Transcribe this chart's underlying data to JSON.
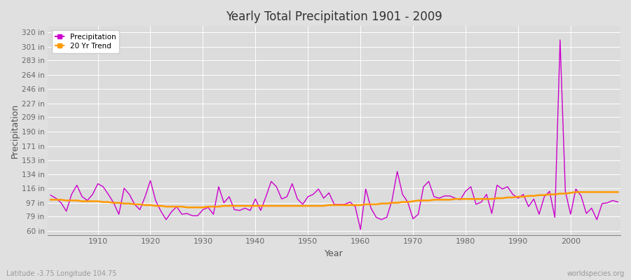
{
  "title": "Yearly Total Precipitation 1901 - 2009",
  "xlabel": "Year",
  "ylabel": "Precipitation",
  "lat_lon_label": "Latitude -3.75 Longitude 104.75",
  "watermark": "worldspecies.org",
  "years": [
    1901,
    1902,
    1903,
    1904,
    1905,
    1906,
    1907,
    1908,
    1909,
    1910,
    1911,
    1912,
    1913,
    1914,
    1915,
    1916,
    1917,
    1918,
    1919,
    1920,
    1921,
    1922,
    1923,
    1924,
    1925,
    1926,
    1927,
    1928,
    1929,
    1930,
    1931,
    1932,
    1933,
    1934,
    1935,
    1936,
    1937,
    1938,
    1939,
    1940,
    1941,
    1942,
    1943,
    1944,
    1945,
    1946,
    1947,
    1948,
    1949,
    1950,
    1951,
    1952,
    1953,
    1954,
    1955,
    1956,
    1957,
    1958,
    1959,
    1960,
    1961,
    1962,
    1963,
    1964,
    1965,
    1966,
    1967,
    1968,
    1969,
    1970,
    1971,
    1972,
    1973,
    1974,
    1975,
    1976,
    1977,
    1978,
    1979,
    1980,
    1981,
    1982,
    1983,
    1984,
    1985,
    1986,
    1987,
    1988,
    1989,
    1990,
    1991,
    1992,
    1993,
    1994,
    1995,
    1996,
    1997,
    1998,
    1999,
    2000,
    2001,
    2002,
    2003,
    2004,
    2005,
    2006,
    2007,
    2008,
    2009
  ],
  "precipitation": [
    107,
    103,
    97,
    86,
    108,
    120,
    105,
    100,
    108,
    122,
    118,
    108,
    97,
    82,
    116,
    108,
    95,
    88,
    105,
    126,
    100,
    86,
    75,
    85,
    92,
    82,
    83,
    80,
    80,
    88,
    91,
    82,
    118,
    97,
    105,
    88,
    87,
    90,
    87,
    102,
    87,
    105,
    125,
    118,
    102,
    105,
    122,
    102,
    95,
    105,
    108,
    115,
    103,
    110,
    95,
    95,
    95,
    98,
    92,
    62,
    115,
    90,
    78,
    75,
    78,
    100,
    138,
    108,
    98,
    76,
    82,
    118,
    125,
    105,
    103,
    106,
    106,
    103,
    101,
    112,
    118,
    95,
    98,
    108,
    83,
    120,
    115,
    118,
    108,
    103,
    108,
    92,
    102,
    82,
    105,
    112,
    78,
    310,
    112,
    82,
    115,
    106,
    83,
    90,
    75,
    96,
    97,
    100,
    98
  ],
  "trend": [
    101,
    101,
    101,
    100,
    100,
    100,
    99,
    99,
    99,
    99,
    98,
    98,
    97,
    97,
    96,
    96,
    95,
    95,
    94,
    94,
    93,
    93,
    92,
    92,
    92,
    92,
    91,
    91,
    91,
    91,
    92,
    92,
    92,
    93,
    93,
    93,
    93,
    93,
    93,
    93,
    93,
    93,
    93,
    93,
    93,
    93,
    93,
    93,
    93,
    93,
    93,
    93,
    93,
    94,
    94,
    94,
    94,
    94,
    94,
    94,
    95,
    95,
    95,
    96,
    96,
    97,
    97,
    98,
    98,
    99,
    100,
    100,
    100,
    101,
    101,
    101,
    101,
    102,
    102,
    102,
    102,
    102,
    102,
    102,
    102,
    103,
    103,
    104,
    104,
    105,
    105,
    106,
    106,
    107,
    107,
    108,
    108,
    109,
    109,
    110,
    111,
    111,
    111,
    111,
    111,
    111,
    111,
    111,
    111
  ],
  "precip_color": "#cc00cc",
  "trend_color": "#ff9900",
  "bg_color": "#e0e0e0",
  "plot_bg_color": "#dcdcdc",
  "grid_color": "#ffffff",
  "yticks": [
    60,
    79,
    97,
    116,
    134,
    153,
    171,
    190,
    209,
    227,
    246,
    264,
    283,
    301,
    320
  ],
  "ytick_labels": [
    "60 in",
    "79 in",
    "97 in",
    "116 in",
    "134 in",
    "153 in",
    "171 in",
    "190 in",
    "209 in",
    "227 in",
    "246 in",
    "264 in",
    "283 in",
    "301 in",
    "320 in"
  ],
  "ylim": [
    55,
    328
  ],
  "xlim": [
    1900.5,
    2009.5
  ]
}
